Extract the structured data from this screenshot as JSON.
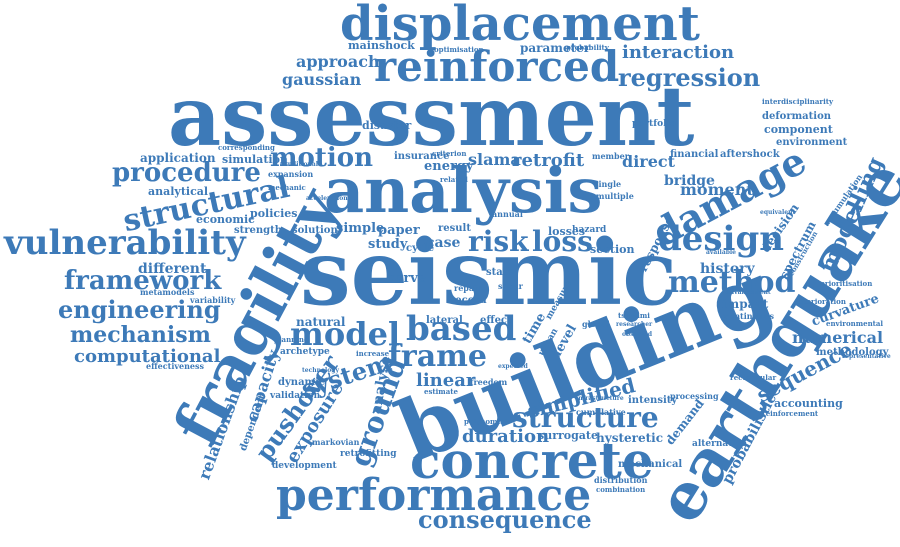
{
  "colors": {
    "text": "#3d7ab8",
    "background": "#ffffff"
  },
  "words": [
    "assessment",
    "displacement",
    "reinforced",
    "analysis",
    "seismic",
    "building",
    "earthquake",
    "fragility",
    "concrete",
    "performance",
    "vulnerability",
    "damage",
    "design",
    "structural",
    "procedure",
    "motion",
    "framework",
    "engineering",
    "mechanism",
    "computational",
    "model",
    "based",
    "frame",
    "risk",
    "loss",
    "method",
    "system",
    "ground",
    "pushover",
    "structure",
    "simplified",
    "duration",
    "consequence",
    "regression",
    "interaction",
    "approach",
    "gaussian",
    "modelling",
    "moment",
    "direct",
    "bridge",
    "history",
    "numerical",
    "sequence",
    "probabilistic",
    "relationship",
    "capacity",
    "exposure",
    "analyse",
    "linear",
    "retrofit",
    "slama",
    "different",
    "application",
    "simulation",
    "analytical",
    "economic",
    "policies",
    "mainshock",
    "parameter",
    "disaster",
    "decision",
    "spectrum",
    "curvature",
    "component",
    "environment",
    "deformation",
    "accumulation",
    "methodology",
    "hysteretic",
    "demand",
    "surrogate",
    "intensity",
    "processing",
    "section",
    "losses",
    "response",
    "study",
    "paper",
    "simple",
    "solution",
    "strength",
    "natural",
    "archetype",
    "dynamic",
    "validation",
    "dependent",
    "development",
    "retrofitting",
    "markovian",
    "mechanical",
    "distribution",
    "combination",
    "alternative",
    "accounting",
    "reinforcement",
    "impact",
    "continuous",
    "environmental",
    "effectiveness",
    "metamodels",
    "variability",
    "curve",
    "insurance",
    "energy",
    "criterion",
    "financial",
    "aftershock",
    "interdisciplinarity",
    "portfolio",
    "optimisation",
    "probability",
    "global",
    "urban",
    "level",
    "time",
    "effect",
    "lateral",
    "increase",
    "freedom",
    "tsunami",
    "prioritisation",
    "deterioration",
    "rectangular",
    "cumulative",
    "corresponding",
    "mechanic",
    "estimate",
    "polynomial",
    "planning",
    "representative",
    "expansion",
    "record",
    "result",
    "case",
    "cycle",
    "state",
    "repair",
    "single",
    "multiple",
    "shear",
    "measure",
    "expected",
    "annual",
    "hazard",
    "related",
    "member",
    "construction",
    "available",
    "advancement",
    "equivalent",
    "technology",
    "infrastructure",
    "researcher",
    "observed",
    "conditional",
    "acceleration"
  ]
}
